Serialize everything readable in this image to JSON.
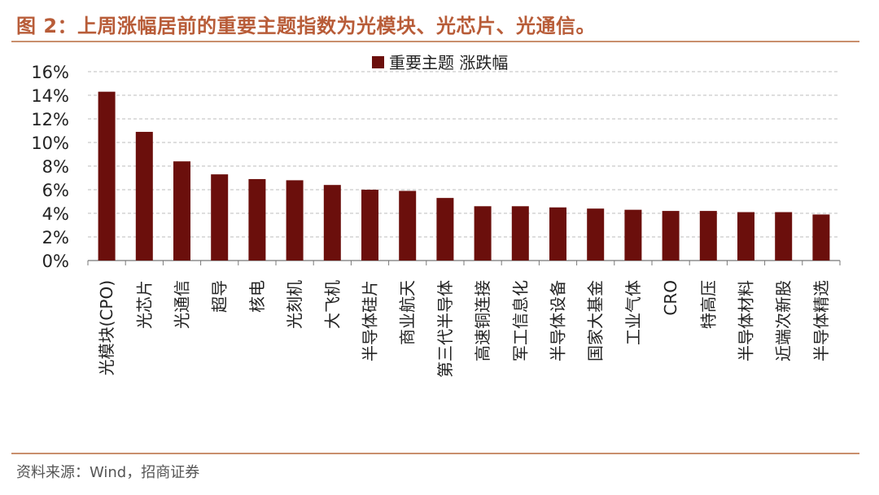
{
  "figure": {
    "title": "图 2：上周涨幅居前的重要主题指数为光模块、光芯片、光通信。",
    "source": "资料来源：Wind，招商证券"
  },
  "colors": {
    "bar": "#6b0f0c",
    "accent": "#b85c38",
    "rule": "#c98f6d"
  },
  "chart_data": {
    "type": "bar",
    "categories": [
      "光模块(CPO)",
      "光芯片",
      "光通信",
      "超导",
      "核电",
      "光刻机",
      "大飞机",
      "半导体硅片",
      "商业航天",
      "第三代半导体",
      "高速铜连接",
      "军工信息化",
      "半导体设备",
      "国家大基金",
      "工业气体",
      "CRO",
      "特高压",
      "半导体材料",
      "近端次新股",
      "半导体精选"
    ],
    "series": [
      {
        "name": "重要主题 涨跌幅",
        "values": [
          14.3,
          10.9,
          8.4,
          7.3,
          6.9,
          6.8,
          6.4,
          6.0,
          5.9,
          5.3,
          4.6,
          4.6,
          4.5,
          4.4,
          4.3,
          4.2,
          4.2,
          4.1,
          4.1,
          3.9
        ]
      }
    ],
    "yaxis": {
      "ticks": [
        "0%",
        "2%",
        "4%",
        "6%",
        "8%",
        "10%",
        "12%",
        "14%",
        "16%"
      ]
    },
    "ylim": [
      0,
      16
    ],
    "grid": true,
    "legend": "top-center"
  }
}
